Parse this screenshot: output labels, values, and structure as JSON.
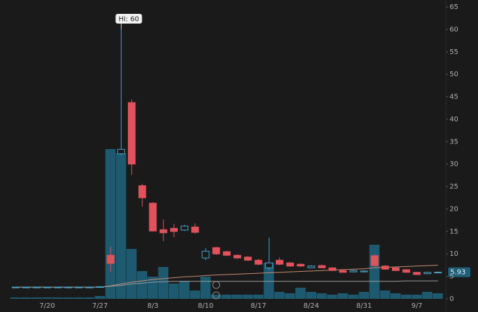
{
  "chart_data": {
    "type": "candlestick",
    "categories": [
      null,
      null,
      null,
      "7/20",
      null,
      null,
      null,
      null,
      "7/27",
      null,
      null,
      null,
      null,
      "8/3",
      null,
      null,
      null,
      null,
      "8/10",
      null,
      null,
      null,
      null,
      "8/17",
      null,
      null,
      null,
      null,
      "8/24",
      null,
      null,
      null,
      null,
      "8/31",
      null,
      null,
      null,
      null,
      "9/7",
      null,
      null
    ],
    "open": [
      2.55,
      2.55,
      2.55,
      2.55,
      2.55,
      2.55,
      2.55,
      2.55,
      2.6,
      9.7,
      32.3,
      43.7,
      25.2,
      21.3,
      15.4,
      15.7,
      15.3,
      16.0,
      9.1,
      11.4,
      10.5,
      9.7,
      9.3,
      8.6,
      6.9,
      8.6,
      8.0,
      7.7,
      6.9,
      7.4,
      6.9,
      6.3,
      6.0,
      6.0,
      9.6,
      7.3,
      6.9,
      6.5,
      5.9,
      5.6,
      5.85
    ],
    "high": [
      2.7,
      2.7,
      2.7,
      2.7,
      2.7,
      2.7,
      2.7,
      2.7,
      2.8,
      11.6,
      60,
      44.4,
      25.6,
      21.5,
      17.7,
      16.7,
      16.5,
      16.8,
      11.3,
      11.6,
      10.7,
      9.9,
      9.5,
      8.9,
      13.6,
      9.2,
      8.2,
      7.9,
      7.5,
      7.6,
      7.0,
      6.4,
      6.5,
      6.4,
      10.0,
      7.5,
      7.0,
      6.6,
      6.0,
      6.0,
      6.1
    ],
    "low": [
      2.5,
      2.5,
      2.5,
      2.5,
      2.5,
      2.5,
      2.5,
      2.5,
      2.5,
      6.0,
      32.0,
      27.6,
      20.5,
      15.0,
      12.8,
      13.7,
      15.1,
      14.5,
      8.6,
      9.8,
      9.5,
      8.9,
      8.4,
      7.5,
      6.5,
      7.5,
      7.1,
      7.1,
      6.8,
      6.8,
      6.2,
      5.8,
      5.9,
      5.9,
      7.2,
      6.5,
      6.2,
      5.8,
      5.3,
      5.5,
      5.8
    ],
    "close": [
      2.6,
      2.6,
      2.6,
      2.6,
      2.6,
      2.6,
      2.6,
      2.6,
      2.7,
      7.9,
      33.3,
      30.0,
      22.5,
      15.1,
      14.7,
      15.0,
      16.2,
      14.8,
      10.6,
      10.0,
      9.7,
      9.1,
      8.6,
      7.7,
      8.0,
      7.7,
      7.3,
      7.3,
      7.3,
      6.9,
      6.3,
      5.9,
      6.3,
      6.2,
      7.4,
      6.6,
      6.3,
      5.9,
      5.4,
      5.9,
      5.93
    ],
    "volume": [
      1,
      1,
      1,
      1,
      1,
      1,
      1,
      1,
      2,
      108,
      105,
      36,
      20,
      16,
      23,
      11,
      13,
      6,
      16,
      3,
      3,
      3,
      3,
      3,
      26,
      5,
      4,
      8,
      5,
      4,
      3,
      4,
      3,
      5,
      39,
      6,
      4,
      3,
      3,
      5,
      4
    ],
    "lines": [
      {
        "color": "#c98c70",
        "values": [
          2.6,
          2.6,
          2.6,
          2.6,
          2.6,
          2.6,
          2.6,
          2.6,
          2.6,
          2.9,
          3.3,
          3.7,
          4.0,
          4.3,
          4.5,
          4.7,
          4.9,
          5.0,
          5.2,
          5.3,
          5.4,
          5.5,
          5.6,
          5.7,
          5.8,
          5.9,
          6.0,
          6.1,
          6.2,
          6.3,
          6.4,
          6.5,
          6.6,
          6.7,
          6.9,
          7.0,
          7.1,
          7.2,
          7.3,
          7.4,
          7.5
        ]
      },
      {
        "color": "#9a9a9a",
        "values": [
          2.6,
          2.6,
          2.6,
          2.6,
          2.6,
          2.6,
          2.6,
          2.6,
          2.6,
          2.8,
          3.0,
          3.3,
          3.5,
          3.7,
          3.8,
          3.9,
          3.9,
          3.9,
          3.9,
          3.9,
          3.9,
          3.9,
          3.9,
          3.9,
          3.9,
          3.9,
          3.9,
          3.9,
          3.9,
          3.9,
          3.9,
          3.9,
          3.9,
          3.9,
          3.9,
          3.9,
          3.9,
          4.0,
          4.0,
          4.0,
          4.0
        ]
      }
    ],
    "up_color": "#4aa3c8",
    "down_color": "#e0525c",
    "volume_color": "#1d5a70",
    "ylim": [
      0,
      65
    ],
    "yticks": [
      0,
      5,
      10,
      15,
      20,
      25,
      30,
      35,
      40,
      45,
      50,
      55,
      60,
      65
    ],
    "high_label": "Hi: 60",
    "price_tag": "5.93"
  }
}
